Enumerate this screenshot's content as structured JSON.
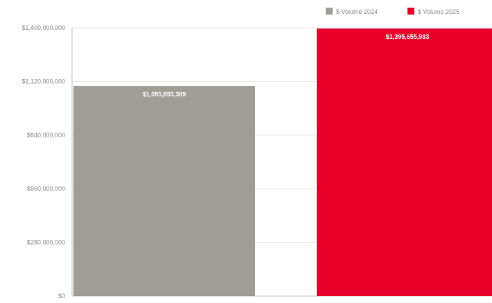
{
  "chart_data": {
    "type": "bar",
    "title": "",
    "xlabel": "",
    "ylabel": "",
    "ylim": [
      0,
      1400000000
    ],
    "y_ticks": [
      {
        "value": 0,
        "label": "$0"
      },
      {
        "value": 280000000,
        "label": "$280,000,000"
      },
      {
        "value": 560000000,
        "label": "$560,000,000"
      },
      {
        "value": 840000000,
        "label": "$840,000,000"
      },
      {
        "value": 1120000000,
        "label": "$1,120,000,000"
      },
      {
        "value": 1400000000,
        "label": "$1,400,000,000"
      }
    ],
    "grid": true,
    "legend_position": "top-right",
    "series": [
      {
        "name": "$ Volume 2024",
        "color": "#a09c96",
        "value": 1095893389,
        "label": "$1,095,893,389"
      },
      {
        "name": "$ Volume 2025",
        "color": "#e8002b",
        "value": 1395655983,
        "label": "$1,395,655,983"
      }
    ]
  }
}
